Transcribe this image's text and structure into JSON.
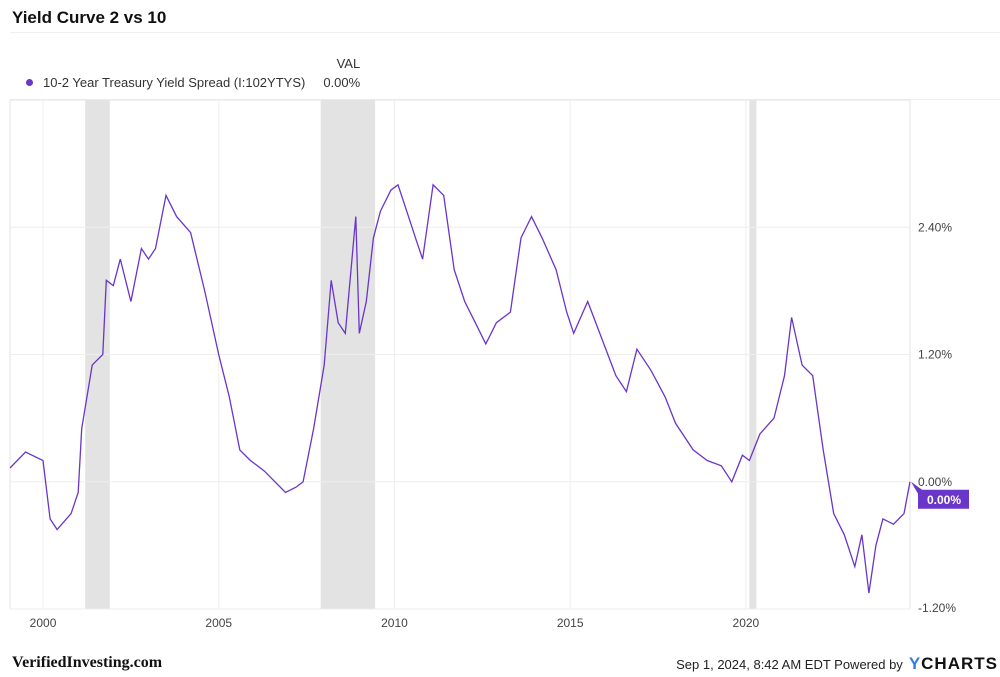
{
  "title": "Yield Curve 2 vs 10",
  "legend": {
    "header": "VAL",
    "series_name": "10-2 Year Treasury Yield Spread (I:102YTYS)",
    "value": "0.00%"
  },
  "colors": {
    "series": "#6a35c9",
    "recession": "#e3e3e3",
    "grid": "#eeeeee"
  },
  "chart_data": {
    "type": "line",
    "xlabel": "",
    "ylabel": "",
    "xlim": [
      1999.06,
      2024.67
    ],
    "ylim": [
      -1.2,
      3.6
    ],
    "x_ticks": [
      2000,
      2005,
      2010,
      2015,
      2020
    ],
    "x_tick_labels": [
      "2000",
      "2005",
      "2010",
      "2015",
      "2020"
    ],
    "y_ticks": [
      2.4,
      1.2,
      0,
      -1.2
    ],
    "y_tick_labels": [
      "2.40%",
      "1.20%",
      "0.00%",
      "-1.20%"
    ],
    "y_axis_side": "right",
    "grid": true,
    "last_value_label": "0.00%",
    "recessions": [
      [
        2001.2,
        2001.9
      ],
      [
        2007.9,
        2009.45
      ],
      [
        2020.1,
        2020.3
      ]
    ],
    "series": [
      {
        "name": "10-2 Year Treasury Yield Spread (I:102YTYS)",
        "x": [
          1999.06,
          1999.5,
          2000.0,
          2000.2,
          2000.4,
          2000.8,
          2001.0,
          2001.1,
          2001.4,
          2001.7,
          2001.8,
          2002.0,
          2002.2,
          2002.5,
          2002.8,
          2003.0,
          2003.2,
          2003.5,
          2003.8,
          2004.2,
          2004.6,
          2005.0,
          2005.3,
          2005.6,
          2005.9,
          2006.3,
          2006.6,
          2006.9,
          2007.2,
          2007.4,
          2007.7,
          2008.0,
          2008.2,
          2008.4,
          2008.6,
          2008.9,
          2009.0,
          2009.2,
          2009.4,
          2009.6,
          2009.9,
          2010.1,
          2010.4,
          2010.6,
          2010.8,
          2011.1,
          2011.4,
          2011.7,
          2012.0,
          2012.3,
          2012.6,
          2012.9,
          2013.3,
          2013.6,
          2013.9,
          2014.2,
          2014.6,
          2014.9,
          2015.1,
          2015.5,
          2015.9,
          2016.3,
          2016.6,
          2016.9,
          2017.3,
          2017.7,
          2018.0,
          2018.5,
          2018.9,
          2019.3,
          2019.6,
          2019.9,
          2020.1,
          2020.4,
          2020.8,
          2021.1,
          2021.3,
          2021.6,
          2021.9,
          2022.2,
          2022.5,
          2022.8,
          2023.1,
          2023.3,
          2023.5,
          2023.7,
          2023.9,
          2024.2,
          2024.5,
          2024.67
        ],
        "y": [
          0.13,
          0.28,
          0.2,
          -0.35,
          -0.45,
          -0.3,
          -0.1,
          0.5,
          1.1,
          1.2,
          1.9,
          1.85,
          2.1,
          1.7,
          2.2,
          2.1,
          2.2,
          2.7,
          2.5,
          2.35,
          1.8,
          1.2,
          0.8,
          0.3,
          0.2,
          0.1,
          0.0,
          -0.1,
          -0.05,
          0.0,
          0.5,
          1.1,
          1.9,
          1.5,
          1.4,
          2.5,
          1.4,
          1.7,
          2.3,
          2.55,
          2.75,
          2.8,
          2.5,
          2.3,
          2.1,
          2.8,
          2.7,
          2.0,
          1.7,
          1.5,
          1.3,
          1.5,
          1.6,
          2.3,
          2.5,
          2.3,
          2.0,
          1.6,
          1.4,
          1.7,
          1.35,
          1.0,
          0.85,
          1.25,
          1.05,
          0.8,
          0.55,
          0.3,
          0.2,
          0.15,
          0.0,
          0.25,
          0.2,
          0.45,
          0.6,
          1.0,
          1.55,
          1.1,
          1.0,
          0.3,
          -0.3,
          -0.5,
          -0.8,
          -0.5,
          -1.05,
          -0.6,
          -0.35,
          -0.4,
          -0.3,
          0.0
        ]
      }
    ]
  },
  "footer": {
    "brand": "VerifiedInvesting.com",
    "timestamp": "Sep 1, 2024, 8:42 AM EDT Powered by",
    "logo_y": "Y",
    "logo_rest": "CHARTS"
  }
}
